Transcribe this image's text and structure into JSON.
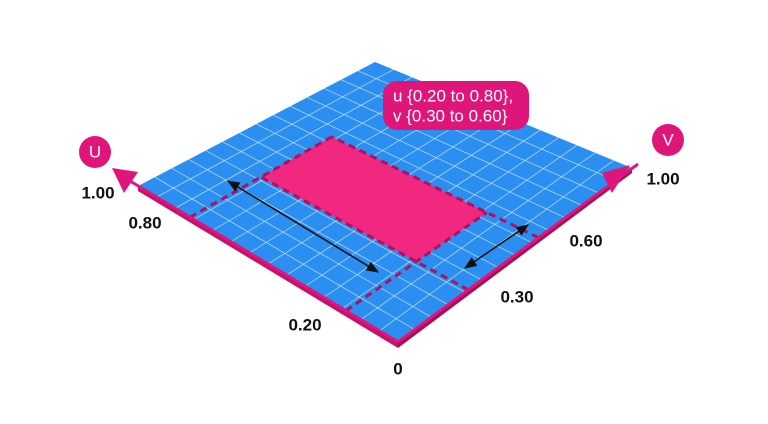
{
  "axes": {
    "u": {
      "name": "U",
      "end_label": "1.00"
    },
    "v": {
      "name": "V",
      "end_label": "1.00"
    }
  },
  "origin_label": "0",
  "u_ticks": [
    "0.20",
    "0.80"
  ],
  "v_ticks": [
    "0.30",
    "0.60"
  ],
  "callout": {
    "line1": "u {0.20 to 0.80},",
    "line2": "v {0.30 to 0.60}"
  }
}
